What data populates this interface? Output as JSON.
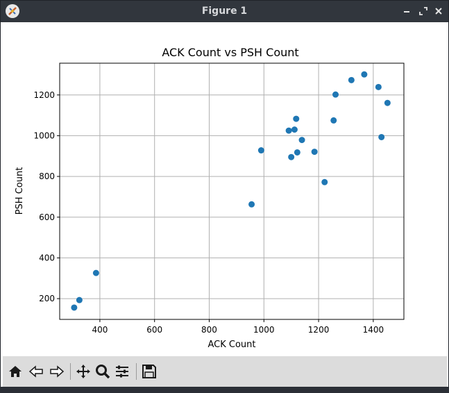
{
  "window": {
    "title": "Figure 1"
  },
  "chart_data": {
    "type": "scatter",
    "title": "ACK Count vs PSH Count",
    "xlabel": "ACK Count",
    "ylabel": "PSH Count",
    "xlim": [
      253,
      1512
    ],
    "ylim": [
      98,
      1356
    ],
    "xticks": [
      400,
      600,
      800,
      1000,
      1200,
      1400
    ],
    "yticks": [
      200,
      400,
      600,
      800,
      1000,
      1200
    ],
    "grid": true,
    "color": "#1f77b4",
    "points": [
      {
        "x": 306,
        "y": 156
      },
      {
        "x": 325,
        "y": 193
      },
      {
        "x": 386,
        "y": 326
      },
      {
        "x": 955,
        "y": 663
      },
      {
        "x": 990,
        "y": 928
      },
      {
        "x": 1091,
        "y": 1025
      },
      {
        "x": 1100,
        "y": 895
      },
      {
        "x": 1112,
        "y": 1030
      },
      {
        "x": 1118,
        "y": 1083
      },
      {
        "x": 1122,
        "y": 918
      },
      {
        "x": 1139,
        "y": 979
      },
      {
        "x": 1185,
        "y": 921
      },
      {
        "x": 1222,
        "y": 772
      },
      {
        "x": 1255,
        "y": 1075
      },
      {
        "x": 1262,
        "y": 1202
      },
      {
        "x": 1320,
        "y": 1273
      },
      {
        "x": 1367,
        "y": 1301
      },
      {
        "x": 1419,
        "y": 1239
      },
      {
        "x": 1430,
        "y": 993
      },
      {
        "x": 1452,
        "y": 1161
      }
    ]
  },
  "toolbar": {
    "buttons": [
      "home-icon",
      "back-arrow-icon",
      "forward-arrow-icon",
      "pan-icon",
      "zoom-icon",
      "configure-subplots-icon",
      "save-icon"
    ]
  }
}
